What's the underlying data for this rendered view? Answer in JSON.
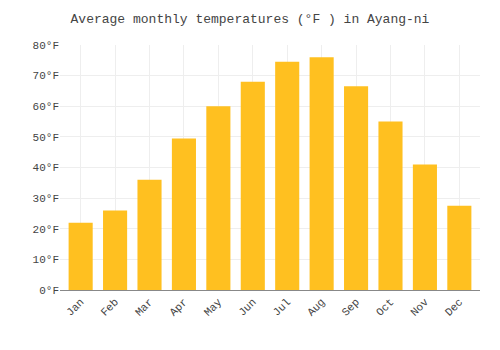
{
  "chart_data": {
    "type": "bar",
    "title": "Average monthly temperatures (°F ) in Ayang-ni",
    "categories": [
      "Jan",
      "Feb",
      "Mar",
      "Apr",
      "May",
      "Jun",
      "Jul",
      "Aug",
      "Sep",
      "Oct",
      "Nov",
      "Dec"
    ],
    "values": [
      22,
      26,
      36,
      49.5,
      60,
      68,
      74.5,
      76,
      66.5,
      55,
      41,
      27.5
    ],
    "color": "#FFC020",
    "ylim": [
      0,
      80
    ],
    "yticks": [
      {
        "value": 0,
        "label": "0°F"
      },
      {
        "value": 10,
        "label": "10°F"
      },
      {
        "value": 20,
        "label": "20°F"
      },
      {
        "value": 30,
        "label": "30°F"
      },
      {
        "value": 40,
        "label": "40°F"
      },
      {
        "value": 50,
        "label": "50°F"
      },
      {
        "value": 60,
        "label": "60°F"
      },
      {
        "value": 70,
        "label": "70°F"
      },
      {
        "value": 80,
        "label": "80°F"
      }
    ],
    "grid": true
  }
}
